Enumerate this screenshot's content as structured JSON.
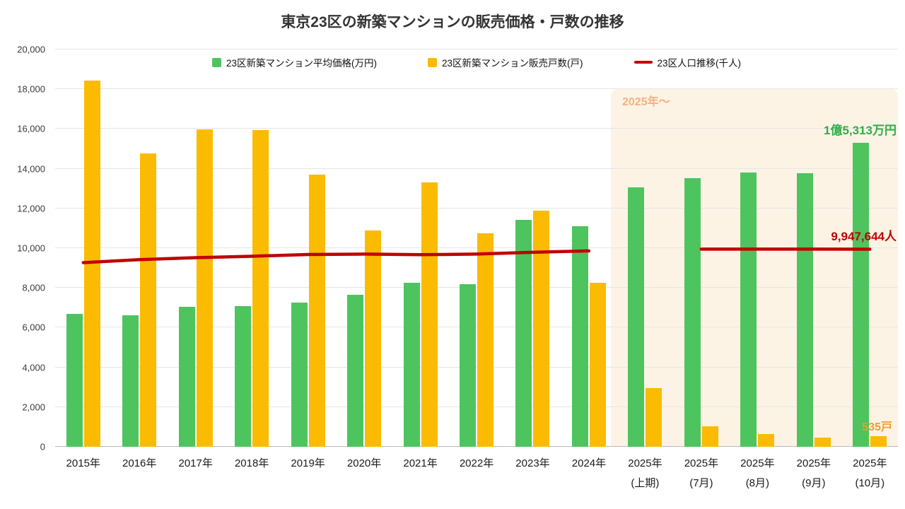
{
  "page": {
    "background": "#ffffff"
  },
  "chart_data": {
    "type": "bar",
    "title": "東京23区の新築マンションの販売価格・戸数の推移",
    "xlabel": "",
    "ylabel": "",
    "ylim": [
      0,
      20000
    ],
    "grid": true,
    "legend_position": "top",
    "ytick_labels": [
      "0",
      "2,000",
      "4,000",
      "6,000",
      "8,000",
      "10,000",
      "12,000",
      "14,000",
      "16,000",
      "18,000",
      "20,000"
    ],
    "categories": [
      {
        "line1": "2015年"
      },
      {
        "line1": "2016年"
      },
      {
        "line1": "2017年"
      },
      {
        "line1": "2018年"
      },
      {
        "line1": "2019年"
      },
      {
        "line1": "2020年"
      },
      {
        "line1": "2021年"
      },
      {
        "line1": "2022年"
      },
      {
        "line1": "2023年"
      },
      {
        "line1": "2024年"
      },
      {
        "line1": "2025年",
        "line2": "(上期)"
      },
      {
        "line1": "2025年",
        "line2": "(7月)"
      },
      {
        "line1": "2025年",
        "line2": "(8月)"
      },
      {
        "line1": "2025年",
        "line2": "(9月)"
      },
      {
        "line1": "2025年",
        "line2": "(10月)"
      }
    ],
    "series": [
      {
        "key": "price",
        "name": "23区新築マンション平均価格(万円)",
        "type": "bar",
        "color": "#4EC45F",
        "values": [
          6700,
          6620,
          7050,
          7080,
          7260,
          7660,
          8260,
          8190,
          11430,
          11110,
          13050,
          13520,
          13800,
          13770,
          15313
        ]
      },
      {
        "key": "units",
        "name": "23区新築マンション販売戸数(戸)",
        "type": "bar",
        "color": "#FBBB00",
        "values": [
          18420,
          14770,
          15980,
          15950,
          13700,
          10890,
          13300,
          10750,
          11890,
          8250,
          2950,
          1030,
          640,
          470,
          535
        ]
      },
      {
        "key": "population",
        "name": "23区人口推移(千人)",
        "type": "line",
        "color": "#C00000",
        "values": [
          9270,
          9420,
          9520,
          9590,
          9680,
          9700,
          9670,
          9700,
          9790,
          9860,
          null,
          9950,
          9950,
          9950,
          9948
        ]
      }
    ],
    "annotations": {
      "highlight_label": "2025年～",
      "price_label": "1億5,313万円",
      "population_label": "9,947,644人",
      "units_label": "535戸"
    }
  }
}
